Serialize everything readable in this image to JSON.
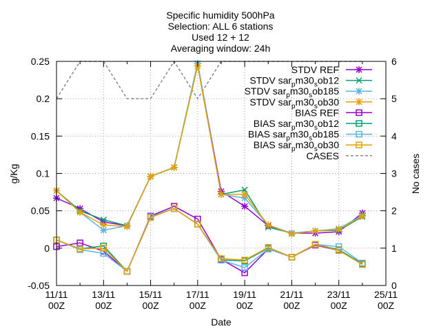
{
  "chart_data": {
    "type": "line",
    "title_lines": [
      "Specific humidity 500hPa",
      "Selection: ALL      6 stations",
      "Used 12 + 12",
      "Averaging window: 24h"
    ],
    "xlabel": "Date",
    "ylabel": "g/Kg",
    "y2label": "No cases",
    "x_ticks": [
      {
        "day": 11,
        "line1": "11/11",
        "line2": "00Z"
      },
      {
        "day": 13,
        "line1": "13/11",
        "line2": "00Z"
      },
      {
        "day": 15,
        "line1": "15/11",
        "line2": "00Z"
      },
      {
        "day": 17,
        "line1": "17/11",
        "line2": "00Z"
      },
      {
        "day": 19,
        "line1": "19/11",
        "line2": "00Z"
      },
      {
        "day": 21,
        "line1": "21/11",
        "line2": "00Z"
      },
      {
        "day": 23,
        "line1": "23/11",
        "line2": "00Z"
      },
      {
        "day": 25,
        "line1": "25/11",
        "line2": "00Z"
      }
    ],
    "xlim": [
      11,
      25
    ],
    "ylim": [
      -0.05,
      0.25
    ],
    "y_ticks": [
      -0.05,
      0,
      0.05,
      0.1,
      0.15,
      0.2,
      0.25
    ],
    "y_tick_labels": [
      "-0.05",
      "0",
      "0.05",
      "0.1",
      "0.15",
      "0.2",
      "0.25"
    ],
    "y2lim": [
      0,
      6
    ],
    "y2_ticks": [
      0,
      1,
      2,
      3,
      4,
      5,
      6
    ],
    "y2_tick_labels": [
      "0",
      "1",
      "2",
      "3",
      "4",
      "5",
      "6"
    ],
    "grid": true,
    "legend_position": "top-right",
    "x": [
      11,
      12,
      13,
      14,
      15,
      16,
      17,
      18,
      19,
      20,
      21,
      22,
      23,
      24
    ],
    "series": [
      {
        "label_main": "STDV REF",
        "color": "#9400d3",
        "marker": "star",
        "values": [
          0.067,
          0.053,
          0.035,
          0.03,
          0.096,
          0.108,
          0.247,
          0.076,
          0.056,
          0.03,
          0.02,
          0.02,
          0.022,
          0.047
        ]
      },
      {
        "label_main": "STDV sar",
        "label_sub": "p",
        "label_tail": "m30",
        "label_sub2": "s",
        "label_end": "ob12",
        "color": "#009e73",
        "marker": "cross",
        "values": [
          0.077,
          0.05,
          0.038,
          0.03,
          0.096,
          0.108,
          0.247,
          0.072,
          0.078,
          0.028,
          0.02,
          0.023,
          0.024,
          0.042
        ]
      },
      {
        "label_main": "STDV sar",
        "label_sub": "p",
        "label_tail": "m30",
        "label_sub2": "s",
        "label_end": "ob185",
        "color": "#56b4e9",
        "marker": "star",
        "values": [
          0.077,
          0.048,
          0.024,
          0.03,
          0.096,
          0.108,
          0.247,
          0.072,
          0.067,
          0.031,
          0.02,
          0.023,
          0.026,
          0.044
        ]
      },
      {
        "label_main": "STDV sar",
        "label_sub": "p",
        "label_tail": "m30",
        "label_sub2": "s",
        "label_end": "ob30",
        "color": "#e69f00",
        "marker": "star",
        "values": [
          0.077,
          0.048,
          0.031,
          0.029,
          0.096,
          0.108,
          0.244,
          0.072,
          0.072,
          0.031,
          0.019,
          0.023,
          0.025,
          0.043
        ]
      },
      {
        "label_main": "BIAS REF",
        "color": "#9400d3",
        "marker": "square",
        "values": [
          0.002,
          0.007,
          -0.004,
          -0.031,
          0.043,
          0.056,
          0.039,
          -0.015,
          -0.033,
          -0.001,
          -0.012,
          0.004,
          -0.003,
          -0.021
        ]
      },
      {
        "label_main": "BIAS sar",
        "label_sub": "p",
        "label_tail": "m30",
        "label_sub2": "s",
        "label_end": "ob12",
        "color": "#009e73",
        "marker": "square",
        "values": [
          0.011,
          -0.001,
          0.003,
          -0.031,
          0.042,
          0.053,
          0.032,
          -0.016,
          -0.017,
          0.0,
          -0.012,
          0.005,
          -0.002,
          -0.021
        ]
      },
      {
        "label_main": "BIAS sar",
        "label_sub": "p",
        "label_tail": "m30",
        "label_sub2": "s",
        "label_end": "ob185",
        "color": "#56b4e9",
        "marker": "square",
        "values": [
          0.011,
          -0.002,
          -0.007,
          -0.031,
          0.042,
          0.053,
          0.032,
          -0.016,
          -0.026,
          -0.001,
          -0.012,
          0.005,
          0.002,
          -0.02
        ]
      },
      {
        "label_main": "BIAS sar",
        "label_sub": "p",
        "label_tail": "m30",
        "label_sub2": "s",
        "label_end": "ob30",
        "color": "#e69f00",
        "marker": "square",
        "values": [
          0.011,
          -0.001,
          0.0,
          -0.031,
          0.041,
          0.053,
          0.032,
          -0.014,
          -0.016,
          0.001,
          -0.012,
          0.005,
          -0.003,
          -0.022
        ]
      }
    ],
    "cases": {
      "label_main": "CASES",
      "color": "#888888",
      "x": [
        11,
        12,
        13,
        14,
        15,
        16,
        17,
        18,
        19,
        20,
        21,
        22,
        23,
        24
      ],
      "values": [
        5,
        6,
        6,
        5,
        5,
        6,
        5,
        6,
        6,
        6,
        6,
        6,
        6,
        6
      ]
    }
  }
}
